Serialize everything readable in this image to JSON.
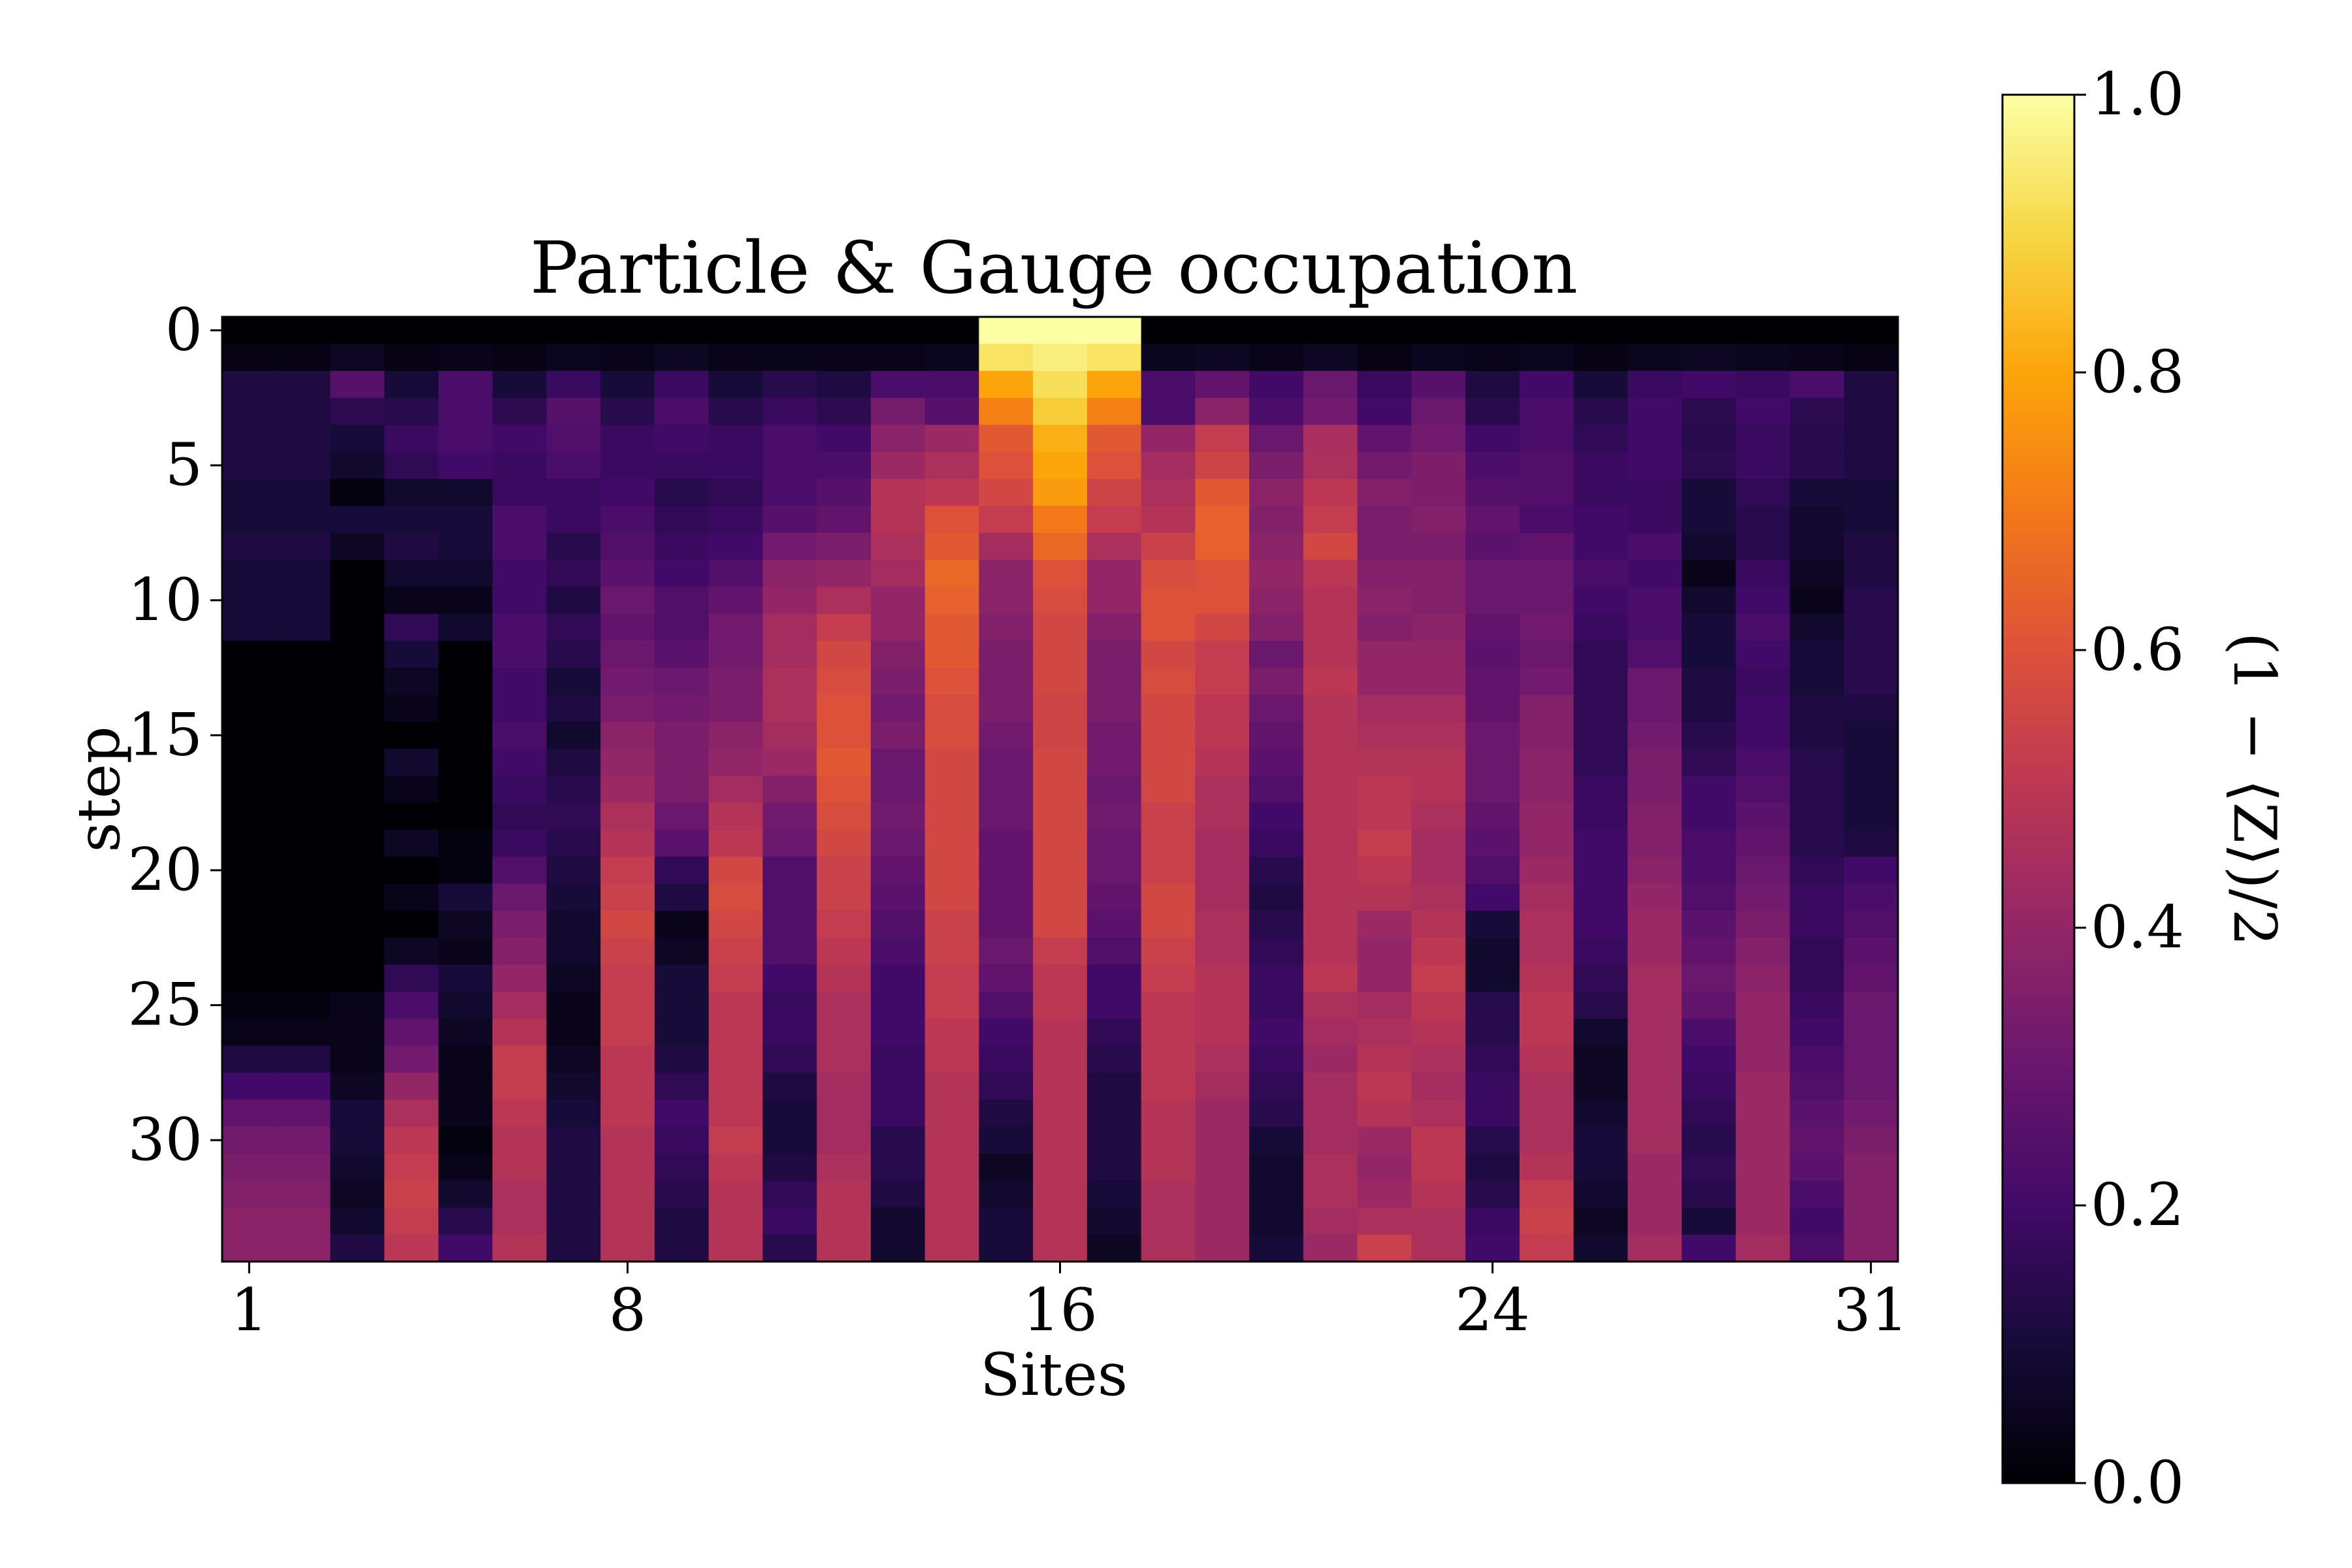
{
  "chart_data": {
    "type": "heatmap",
    "title": "Particle & Gauge occupation",
    "xlabel": "Sites",
    "ylabel": "step",
    "x_ticks": [
      1,
      8,
      16,
      24,
      31
    ],
    "y_ticks": [
      0,
      5,
      10,
      15,
      20,
      25,
      30
    ],
    "n_sites": 31,
    "n_steps": 35,
    "colormap": "inferno",
    "colorbar": {
      "label": "(1 − ⟨Z⟩)/2",
      "range": [
        0.0,
        1.0
      ],
      "ticks": [
        "0.0",
        "0.2",
        "0.4",
        "0.6",
        "0.8",
        "1.0"
      ]
    },
    "grid": false,
    "values": [
      [
        0,
        0,
        0,
        0,
        0,
        0,
        0,
        0,
        0,
        0,
        0,
        0,
        0,
        0,
        1,
        1,
        1,
        0,
        0,
        0,
        0,
        0,
        0,
        0,
        0,
        0,
        0,
        0,
        0,
        0,
        0
      ],
      [
        0.03,
        0.03,
        0.06,
        0.03,
        0.04,
        0.03,
        0.05,
        0.04,
        0.06,
        0.04,
        0.04,
        0.04,
        0.04,
        0.05,
        0.93,
        0.96,
        0.93,
        0.05,
        0.06,
        0.04,
        0.06,
        0.03,
        0.05,
        0.04,
        0.05,
        0.03,
        0.05,
        0.06,
        0.05,
        0.04,
        0.03
      ],
      [
        0.12,
        0.12,
        0.25,
        0.1,
        0.22,
        0.1,
        0.18,
        0.1,
        0.18,
        0.1,
        0.14,
        0.12,
        0.22,
        0.22,
        0.8,
        0.92,
        0.8,
        0.22,
        0.28,
        0.2,
        0.3,
        0.18,
        0.25,
        0.12,
        0.2,
        0.1,
        0.18,
        0.2,
        0.18,
        0.22,
        0.12
      ],
      [
        0.12,
        0.12,
        0.15,
        0.14,
        0.22,
        0.15,
        0.25,
        0.14,
        0.22,
        0.14,
        0.18,
        0.15,
        0.33,
        0.25,
        0.72,
        0.88,
        0.72,
        0.22,
        0.38,
        0.22,
        0.32,
        0.2,
        0.3,
        0.14,
        0.22,
        0.14,
        0.2,
        0.15,
        0.2,
        0.15,
        0.12
      ],
      [
        0.12,
        0.12,
        0.1,
        0.18,
        0.22,
        0.2,
        0.24,
        0.18,
        0.2,
        0.18,
        0.22,
        0.2,
        0.38,
        0.42,
        0.62,
        0.82,
        0.62,
        0.4,
        0.52,
        0.3,
        0.45,
        0.28,
        0.32,
        0.2,
        0.22,
        0.16,
        0.2,
        0.14,
        0.18,
        0.14,
        0.12
      ],
      [
        0.12,
        0.12,
        0.08,
        0.16,
        0.2,
        0.18,
        0.22,
        0.18,
        0.18,
        0.18,
        0.22,
        0.22,
        0.42,
        0.46,
        0.6,
        0.8,
        0.6,
        0.44,
        0.55,
        0.34,
        0.46,
        0.32,
        0.35,
        0.22,
        0.24,
        0.18,
        0.2,
        0.15,
        0.18,
        0.14,
        0.12
      ],
      [
        0.1,
        0.1,
        0.02,
        0.08,
        0.08,
        0.18,
        0.18,
        0.2,
        0.14,
        0.16,
        0.22,
        0.25,
        0.48,
        0.5,
        0.56,
        0.78,
        0.55,
        0.46,
        0.62,
        0.38,
        0.5,
        0.36,
        0.35,
        0.25,
        0.24,
        0.18,
        0.18,
        0.1,
        0.16,
        0.1,
        0.1
      ],
      [
        0.1,
        0.1,
        0.1,
        0.1,
        0.1,
        0.22,
        0.18,
        0.22,
        0.16,
        0.18,
        0.25,
        0.28,
        0.48,
        0.6,
        0.52,
        0.7,
        0.52,
        0.48,
        0.64,
        0.36,
        0.52,
        0.34,
        0.36,
        0.28,
        0.22,
        0.2,
        0.18,
        0.1,
        0.14,
        0.08,
        0.1
      ],
      [
        0.12,
        0.12,
        0.06,
        0.12,
        0.1,
        0.22,
        0.14,
        0.24,
        0.18,
        0.2,
        0.32,
        0.34,
        0.46,
        0.62,
        0.44,
        0.66,
        0.46,
        0.54,
        0.64,
        0.38,
        0.56,
        0.34,
        0.34,
        0.26,
        0.28,
        0.2,
        0.22,
        0.08,
        0.14,
        0.08,
        0.12
      ],
      [
        0.1,
        0.1,
        0.0,
        0.08,
        0.08,
        0.2,
        0.16,
        0.26,
        0.2,
        0.24,
        0.38,
        0.4,
        0.44,
        0.66,
        0.38,
        0.6,
        0.4,
        0.58,
        0.6,
        0.4,
        0.5,
        0.36,
        0.36,
        0.3,
        0.3,
        0.22,
        0.2,
        0.04,
        0.18,
        0.06,
        0.12
      ],
      [
        0.1,
        0.1,
        0.0,
        0.04,
        0.04,
        0.2,
        0.12,
        0.3,
        0.24,
        0.28,
        0.4,
        0.46,
        0.4,
        0.64,
        0.38,
        0.58,
        0.4,
        0.6,
        0.6,
        0.38,
        0.48,
        0.38,
        0.36,
        0.3,
        0.3,
        0.2,
        0.22,
        0.08,
        0.2,
        0.04,
        0.14
      ],
      [
        0.1,
        0.1,
        0.0,
        0.16,
        0.08,
        0.22,
        0.16,
        0.28,
        0.24,
        0.32,
        0.44,
        0.52,
        0.4,
        0.62,
        0.36,
        0.56,
        0.36,
        0.6,
        0.56,
        0.36,
        0.48,
        0.36,
        0.38,
        0.28,
        0.32,
        0.18,
        0.22,
        0.1,
        0.22,
        0.08,
        0.14
      ],
      [
        0.0,
        0.0,
        0.0,
        0.1,
        0.0,
        0.22,
        0.14,
        0.3,
        0.26,
        0.32,
        0.44,
        0.56,
        0.36,
        0.62,
        0.34,
        0.56,
        0.34,
        0.56,
        0.52,
        0.3,
        0.48,
        0.4,
        0.4,
        0.26,
        0.3,
        0.16,
        0.24,
        0.1,
        0.2,
        0.1,
        0.14
      ],
      [
        0.0,
        0.0,
        0.0,
        0.06,
        0.0,
        0.2,
        0.1,
        0.32,
        0.3,
        0.34,
        0.46,
        0.58,
        0.34,
        0.6,
        0.34,
        0.56,
        0.34,
        0.58,
        0.52,
        0.34,
        0.5,
        0.4,
        0.4,
        0.28,
        0.32,
        0.16,
        0.3,
        0.12,
        0.18,
        0.1,
        0.14
      ],
      [
        0.0,
        0.0,
        0.0,
        0.04,
        0.0,
        0.2,
        0.12,
        0.34,
        0.32,
        0.34,
        0.46,
        0.6,
        0.32,
        0.58,
        0.34,
        0.55,
        0.34,
        0.56,
        0.5,
        0.3,
        0.48,
        0.44,
        0.44,
        0.28,
        0.36,
        0.16,
        0.3,
        0.12,
        0.2,
        0.12,
        0.12
      ],
      [
        0.0,
        0.0,
        0.0,
        0.0,
        0.0,
        0.22,
        0.08,
        0.38,
        0.34,
        0.38,
        0.44,
        0.6,
        0.34,
        0.58,
        0.32,
        0.55,
        0.32,
        0.56,
        0.5,
        0.28,
        0.48,
        0.46,
        0.46,
        0.3,
        0.36,
        0.16,
        0.32,
        0.14,
        0.2,
        0.12,
        0.1
      ],
      [
        0.0,
        0.0,
        0.0,
        0.08,
        0.0,
        0.2,
        0.12,
        0.4,
        0.34,
        0.4,
        0.42,
        0.62,
        0.3,
        0.56,
        0.3,
        0.56,
        0.32,
        0.56,
        0.48,
        0.26,
        0.48,
        0.48,
        0.48,
        0.3,
        0.38,
        0.16,
        0.34,
        0.16,
        0.22,
        0.14,
        0.1
      ],
      [
        0.0,
        0.0,
        0.0,
        0.04,
        0.0,
        0.18,
        0.14,
        0.42,
        0.34,
        0.44,
        0.36,
        0.6,
        0.3,
        0.56,
        0.3,
        0.56,
        0.3,
        0.56,
        0.46,
        0.24,
        0.48,
        0.5,
        0.48,
        0.3,
        0.38,
        0.18,
        0.34,
        0.2,
        0.24,
        0.14,
        0.1
      ],
      [
        0.0,
        0.0,
        0.0,
        0.0,
        0.0,
        0.16,
        0.16,
        0.46,
        0.3,
        0.48,
        0.32,
        0.58,
        0.32,
        0.56,
        0.3,
        0.56,
        0.32,
        0.54,
        0.46,
        0.2,
        0.48,
        0.5,
        0.46,
        0.28,
        0.4,
        0.18,
        0.36,
        0.2,
        0.26,
        0.14,
        0.1
      ],
      [
        0.0,
        0.0,
        0.0,
        0.06,
        0.02,
        0.18,
        0.14,
        0.48,
        0.26,
        0.5,
        0.3,
        0.56,
        0.3,
        0.56,
        0.28,
        0.56,
        0.3,
        0.54,
        0.44,
        0.18,
        0.48,
        0.52,
        0.44,
        0.26,
        0.4,
        0.2,
        0.36,
        0.22,
        0.28,
        0.14,
        0.12
      ],
      [
        0.0,
        0.0,
        0.0,
        0.0,
        0.02,
        0.24,
        0.12,
        0.52,
        0.16,
        0.56,
        0.24,
        0.54,
        0.28,
        0.56,
        0.28,
        0.56,
        0.3,
        0.54,
        0.44,
        0.14,
        0.48,
        0.5,
        0.44,
        0.24,
        0.42,
        0.2,
        0.38,
        0.22,
        0.3,
        0.16,
        0.2
      ],
      [
        0.0,
        0.0,
        0.0,
        0.04,
        0.1,
        0.3,
        0.1,
        0.54,
        0.12,
        0.58,
        0.24,
        0.54,
        0.26,
        0.56,
        0.28,
        0.56,
        0.28,
        0.56,
        0.44,
        0.12,
        0.48,
        0.48,
        0.46,
        0.2,
        0.44,
        0.2,
        0.4,
        0.24,
        0.32,
        0.18,
        0.22
      ],
      [
        0.0,
        0.0,
        0.0,
        0.0,
        0.06,
        0.34,
        0.08,
        0.56,
        0.04,
        0.56,
        0.24,
        0.52,
        0.24,
        0.54,
        0.28,
        0.56,
        0.26,
        0.56,
        0.46,
        0.14,
        0.48,
        0.42,
        0.48,
        0.1,
        0.46,
        0.2,
        0.42,
        0.26,
        0.34,
        0.18,
        0.24
      ],
      [
        0.0,
        0.0,
        0.0,
        0.06,
        0.04,
        0.36,
        0.08,
        0.54,
        0.06,
        0.54,
        0.24,
        0.5,
        0.22,
        0.54,
        0.3,
        0.52,
        0.24,
        0.54,
        0.46,
        0.16,
        0.48,
        0.4,
        0.5,
        0.08,
        0.46,
        0.18,
        0.42,
        0.28,
        0.36,
        0.16,
        0.26
      ],
      [
        0.0,
        0.0,
        0.0,
        0.16,
        0.1,
        0.4,
        0.06,
        0.52,
        0.1,
        0.52,
        0.2,
        0.48,
        0.2,
        0.52,
        0.28,
        0.5,
        0.2,
        0.52,
        0.48,
        0.18,
        0.5,
        0.4,
        0.52,
        0.08,
        0.48,
        0.16,
        0.44,
        0.3,
        0.38,
        0.16,
        0.28
      ],
      [
        0.02,
        0.02,
        0.04,
        0.22,
        0.08,
        0.44,
        0.04,
        0.52,
        0.1,
        0.5,
        0.18,
        0.46,
        0.2,
        0.52,
        0.24,
        0.5,
        0.2,
        0.5,
        0.48,
        0.18,
        0.46,
        0.44,
        0.5,
        0.14,
        0.5,
        0.14,
        0.44,
        0.28,
        0.4,
        0.18,
        0.3
      ],
      [
        0.04,
        0.04,
        0.04,
        0.28,
        0.06,
        0.48,
        0.04,
        0.52,
        0.1,
        0.5,
        0.18,
        0.46,
        0.2,
        0.5,
        0.2,
        0.48,
        0.16,
        0.5,
        0.48,
        0.2,
        0.44,
        0.46,
        0.48,
        0.14,
        0.5,
        0.08,
        0.44,
        0.22,
        0.4,
        0.2,
        0.3
      ],
      [
        0.12,
        0.12,
        0.04,
        0.32,
        0.04,
        0.52,
        0.06,
        0.5,
        0.12,
        0.5,
        0.16,
        0.46,
        0.18,
        0.5,
        0.18,
        0.48,
        0.14,
        0.5,
        0.46,
        0.18,
        0.42,
        0.48,
        0.46,
        0.16,
        0.48,
        0.06,
        0.44,
        0.2,
        0.4,
        0.22,
        0.3
      ],
      [
        0.2,
        0.2,
        0.06,
        0.4,
        0.04,
        0.52,
        0.08,
        0.5,
        0.16,
        0.5,
        0.12,
        0.44,
        0.18,
        0.48,
        0.16,
        0.48,
        0.12,
        0.5,
        0.44,
        0.16,
        0.44,
        0.5,
        0.44,
        0.18,
        0.46,
        0.06,
        0.44,
        0.18,
        0.42,
        0.24,
        0.3
      ],
      [
        0.28,
        0.28,
        0.1,
        0.46,
        0.04,
        0.5,
        0.1,
        0.5,
        0.2,
        0.5,
        0.1,
        0.44,
        0.18,
        0.48,
        0.12,
        0.48,
        0.12,
        0.48,
        0.42,
        0.14,
        0.44,
        0.48,
        0.46,
        0.18,
        0.46,
        0.08,
        0.44,
        0.16,
        0.42,
        0.26,
        0.32
      ],
      [
        0.32,
        0.32,
        0.1,
        0.5,
        0.02,
        0.48,
        0.12,
        0.48,
        0.18,
        0.52,
        0.1,
        0.44,
        0.14,
        0.48,
        0.1,
        0.48,
        0.12,
        0.48,
        0.42,
        0.1,
        0.44,
        0.42,
        0.5,
        0.14,
        0.46,
        0.1,
        0.44,
        0.14,
        0.42,
        0.28,
        0.34
      ],
      [
        0.34,
        0.34,
        0.08,
        0.52,
        0.04,
        0.48,
        0.12,
        0.48,
        0.16,
        0.5,
        0.12,
        0.46,
        0.14,
        0.48,
        0.06,
        0.48,
        0.12,
        0.48,
        0.42,
        0.08,
        0.46,
        0.4,
        0.5,
        0.12,
        0.48,
        0.1,
        0.42,
        0.16,
        0.42,
        0.26,
        0.36
      ],
      [
        0.36,
        0.36,
        0.06,
        0.54,
        0.08,
        0.46,
        0.12,
        0.48,
        0.14,
        0.48,
        0.16,
        0.48,
        0.12,
        0.48,
        0.08,
        0.48,
        0.1,
        0.46,
        0.42,
        0.08,
        0.46,
        0.42,
        0.48,
        0.14,
        0.52,
        0.08,
        0.42,
        0.14,
        0.42,
        0.22,
        0.36
      ],
      [
        0.38,
        0.38,
        0.08,
        0.52,
        0.14,
        0.46,
        0.12,
        0.48,
        0.12,
        0.48,
        0.18,
        0.48,
        0.08,
        0.48,
        0.1,
        0.48,
        0.08,
        0.46,
        0.42,
        0.08,
        0.44,
        0.46,
        0.46,
        0.18,
        0.54,
        0.06,
        0.42,
        0.1,
        0.42,
        0.2,
        0.36
      ],
      [
        0.38,
        0.38,
        0.12,
        0.5,
        0.2,
        0.48,
        0.12,
        0.48,
        0.12,
        0.48,
        0.14,
        0.48,
        0.08,
        0.48,
        0.1,
        0.48,
        0.06,
        0.46,
        0.42,
        0.1,
        0.42,
        0.54,
        0.46,
        0.2,
        0.52,
        0.08,
        0.44,
        0.2,
        0.44,
        0.22,
        0.36
      ]
    ]
  }
}
